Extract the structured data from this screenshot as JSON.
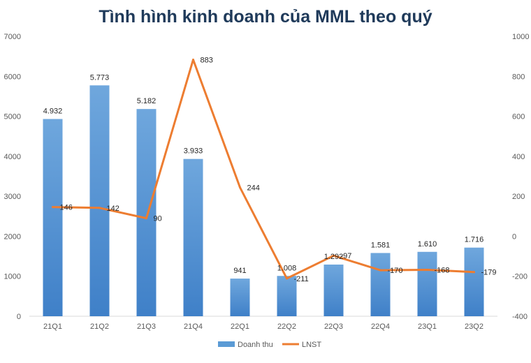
{
  "chart_data": {
    "type": "bar",
    "title": "Tình hình kinh doanh của MML theo quý",
    "categories": [
      "21Q1",
      "21Q2",
      "21Q3",
      "21Q4",
      "22Q1",
      "22Q2",
      "22Q3",
      "22Q4",
      "23Q1",
      "23Q2"
    ],
    "series": [
      {
        "name": "Doanh thu",
        "type": "bar",
        "axis": "left",
        "values": [
          4932,
          5773,
          5182,
          3933,
          941,
          1008,
          1292,
          1581,
          1610,
          1716
        ],
        "labels": [
          "4.932",
          "5.773",
          "5.182",
          "3.933",
          "941",
          "1.008",
          "1.292",
          "1.581",
          "1.610",
          "1.716"
        ],
        "color": "#5b9bd5"
      },
      {
        "name": "LNST",
        "type": "line",
        "axis": "right",
        "values": [
          146,
          142,
          90,
          883,
          244,
          -211,
          -97,
          -170,
          -168,
          -179
        ],
        "labels": [
          "146",
          "142",
          "90",
          "883",
          "244",
          "-211",
          "-97",
          "-170",
          "-168",
          "-179"
        ],
        "color": "#ed7d31"
      }
    ],
    "y_left": {
      "min": 0,
      "max": 7000,
      "step": 1000
    },
    "y_right": {
      "min": -400,
      "max": 1000,
      "step": 200
    },
    "legend_position": "bottom",
    "grid": false
  }
}
